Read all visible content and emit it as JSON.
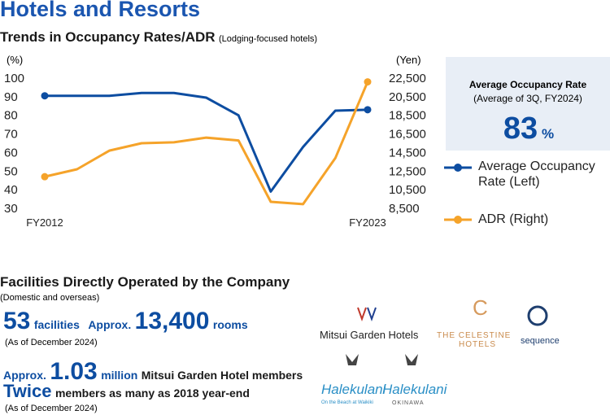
{
  "title": "Hotels and Resorts",
  "chart_data": {
    "type": "line",
    "title": "Trends in Occupancy Rates/ADR",
    "subtitle": "(Lodging-focused hotels)",
    "y_unit": "(%)",
    "y2_unit": "(Yen)",
    "categories": [
      "FY2012",
      null,
      null,
      null,
      null,
      null,
      null,
      null,
      null,
      null,
      "FY2023"
    ],
    "series": [
      {
        "name": "Average Occupancy Rate (Left)",
        "color": "#0d4da1",
        "values": [
          90.5,
          90.5,
          90.5,
          92,
          92,
          89.5,
          80,
          39,
          63,
          82.5,
          83
        ]
      },
      {
        "name": "ADR (Right)",
        "color": "#f5a32a",
        "axis": "y2",
        "values": [
          11900,
          12700,
          14700,
          15500,
          15600,
          16100,
          15800,
          9200,
          8950,
          13900,
          22100
        ]
      }
    ],
    "ylim": [
      30,
      100
    ],
    "yticks": [
      30,
      40,
      50,
      60,
      70,
      80,
      90,
      100
    ],
    "y2lim": [
      8500,
      22500
    ],
    "y2ticks": [
      {
        "value": 8500,
        "label": "8,500"
      },
      {
        "value": 10500,
        "label": "10,500"
      },
      {
        "value": 12500,
        "label": "12,500"
      },
      {
        "value": 14500,
        "label": "14,500"
      },
      {
        "value": 16500,
        "label": "16,500"
      },
      {
        "value": 18500,
        "label": "18,500"
      },
      {
        "value": 20500,
        "label": "20,500"
      },
      {
        "value": 22500,
        "label": "22,500"
      }
    ],
    "grid": false
  },
  "highlight": {
    "title": "Average Occupancy Rate",
    "note": "(Average of 3Q, FY2024)",
    "value": "83",
    "unit": "%"
  },
  "facilities": {
    "title": "Facilities Directly Operated by the Company",
    "note": "(Domestic and overseas)",
    "count": "53",
    "count_unit": "facilities",
    "approx1": "Approx.",
    "rooms": "13,400",
    "rooms_unit": "rooms",
    "date1": "(As of December 2024)",
    "approx2": "Approx.",
    "members": "1.03",
    "members_unit": "million",
    "members_text": "Mitsui Garden Hotel members",
    "twice": "Twice",
    "twice_text": "members as many as 2018 year-end",
    "date2": "(As of December 2024)"
  },
  "brands": [
    "Mitsui Garden Hotels",
    "THE CELESTINE",
    "HOTELS",
    "sequence",
    "Halekulani",
    "On the Beach at Waikiki",
    "Halekulani",
    "OKINAWA"
  ]
}
